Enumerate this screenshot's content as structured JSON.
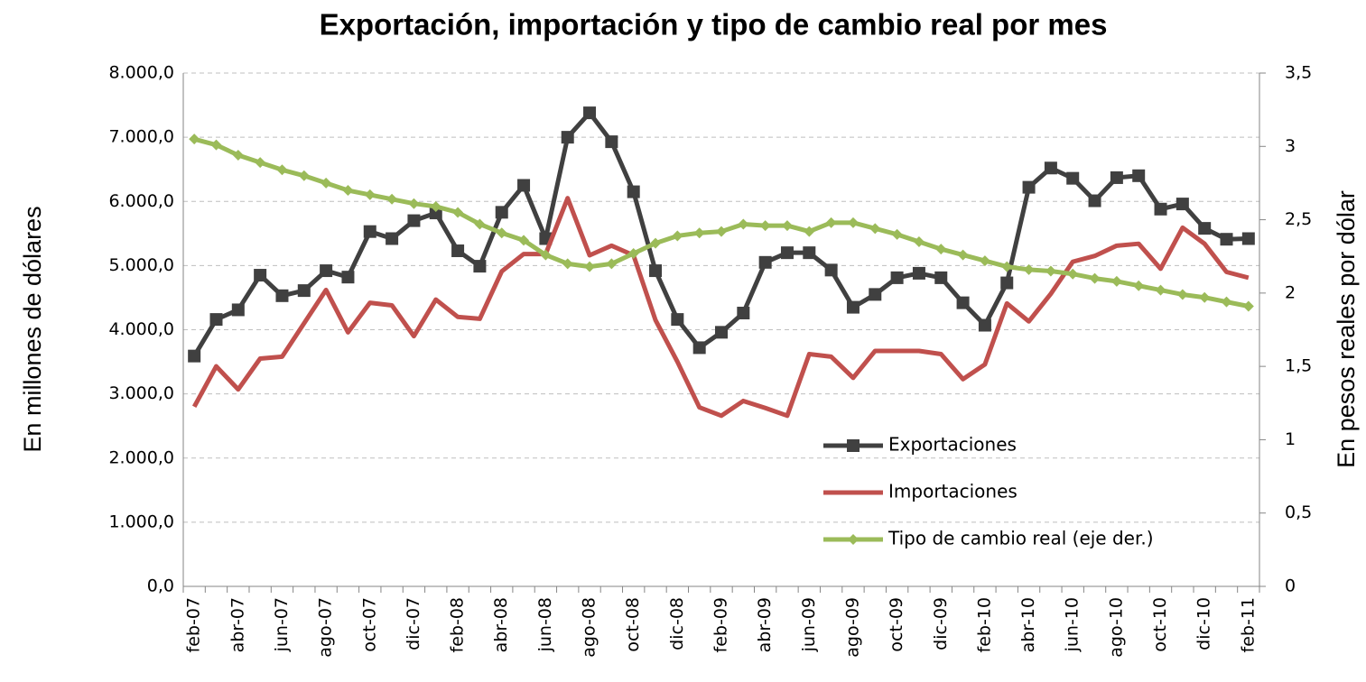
{
  "chart_data": {
    "type": "line",
    "title": "Exportación, importación y tipo de cambio real por mes",
    "y_label": "En millones de dólares",
    "y2_label": "En pesos reales por dólar",
    "categories": [
      "feb-07",
      null,
      "abr-07",
      null,
      "jun-07",
      null,
      "ago-07",
      null,
      "oct-07",
      null,
      "dic-07",
      null,
      "feb-08",
      null,
      "abr-08",
      null,
      "jun-08",
      null,
      "ago-08",
      null,
      "oct-08",
      null,
      "dic-08",
      null,
      "feb-09",
      null,
      "abr-09",
      null,
      "jun-09",
      null,
      "ago-09",
      null,
      "oct-09",
      null,
      "dic-09",
      null,
      "feb-10",
      null,
      "abr-10",
      null,
      "jun-10",
      null,
      "ago-10",
      null,
      "oct-10",
      null,
      "dic-10",
      null,
      "feb-11"
    ],
    "series": [
      {
        "name": "Exportaciones",
        "color": "#404040",
        "marker": "square",
        "values": [
          3590,
          4160,
          4310,
          4850,
          4530,
          4610,
          4920,
          4820,
          5530,
          5420,
          5700,
          5820,
          5230,
          4990,
          5830,
          6250,
          5420,
          7000,
          7380,
          6930,
          6150,
          4920,
          4160,
          3720,
          3960,
          4260,
          5050,
          5200,
          5200,
          4930,
          4350,
          4550,
          4810,
          4880,
          4810,
          4420,
          4070,
          4730,
          6220,
          6520,
          6360,
          6010,
          6370,
          6400,
          5880,
          5960,
          5580,
          5410,
          5420
        ]
      },
      {
        "name": "Importaciones",
        "color": "#c0504d",
        "marker": "none",
        "values": [
          2800,
          3430,
          3070,
          3550,
          3580,
          4100,
          4620,
          3960,
          4420,
          4380,
          3900,
          4470,
          4200,
          4170,
          4910,
          5180,
          5180,
          6050,
          5160,
          5310,
          5160,
          4150,
          3500,
          2790,
          2660,
          2890,
          2780,
          2660,
          3620,
          3580,
          3250,
          3670,
          3670,
          3670,
          3620,
          3230,
          3460,
          4410,
          4130,
          4560,
          5060,
          5150,
          5310,
          5340,
          4950,
          5590,
          5340,
          4900,
          4810
        ]
      },
      {
        "name": "Tipo de cambio real (eje der.)",
        "color": "#9bbb59",
        "marker": "diamond",
        "axis": "y2",
        "values": [
          3.05,
          3.01,
          2.94,
          2.89,
          2.84,
          2.8,
          2.75,
          2.7,
          2.67,
          2.64,
          2.61,
          2.59,
          2.55,
          2.47,
          2.41,
          2.36,
          2.26,
          2.2,
          2.18,
          2.2,
          2.27,
          2.34,
          2.39,
          2.41,
          2.42,
          2.47,
          2.46,
          2.46,
          2.42,
          2.48,
          2.48,
          2.44,
          2.4,
          2.35,
          2.3,
          2.26,
          2.22,
          2.18,
          2.16,
          2.15,
          2.13,
          2.1,
          2.08,
          2.05,
          2.02,
          1.99,
          1.97,
          1.94,
          1.91
        ]
      }
    ],
    "ylim": [
      0,
      8000
    ],
    "yticks": [
      {
        "value": 0,
        "label": "0,0"
      },
      {
        "value": 1000,
        "label": "1.000,0"
      },
      {
        "value": 2000,
        "label": "2.000,0"
      },
      {
        "value": 3000,
        "label": "3.000,0"
      },
      {
        "value": 4000,
        "label": "4.000,0"
      },
      {
        "value": 5000,
        "label": "5.000,0"
      },
      {
        "value": 6000,
        "label": "6.000,0"
      },
      {
        "value": 7000,
        "label": "7.000,0"
      },
      {
        "value": 8000,
        "label": "8.000,0"
      }
    ],
    "y2lim": [
      0,
      3.5
    ],
    "y2ticks": [
      0,
      {
        "value": 0.5,
        "label": "0,5"
      },
      1,
      {
        "value": 1.5,
        "label": "1,5"
      },
      2,
      {
        "value": 2.5,
        "label": "2,5"
      },
      3,
      {
        "value": 3.5,
        "label": "3,5"
      }
    ],
    "grid": true,
    "legend": "lower right"
  }
}
